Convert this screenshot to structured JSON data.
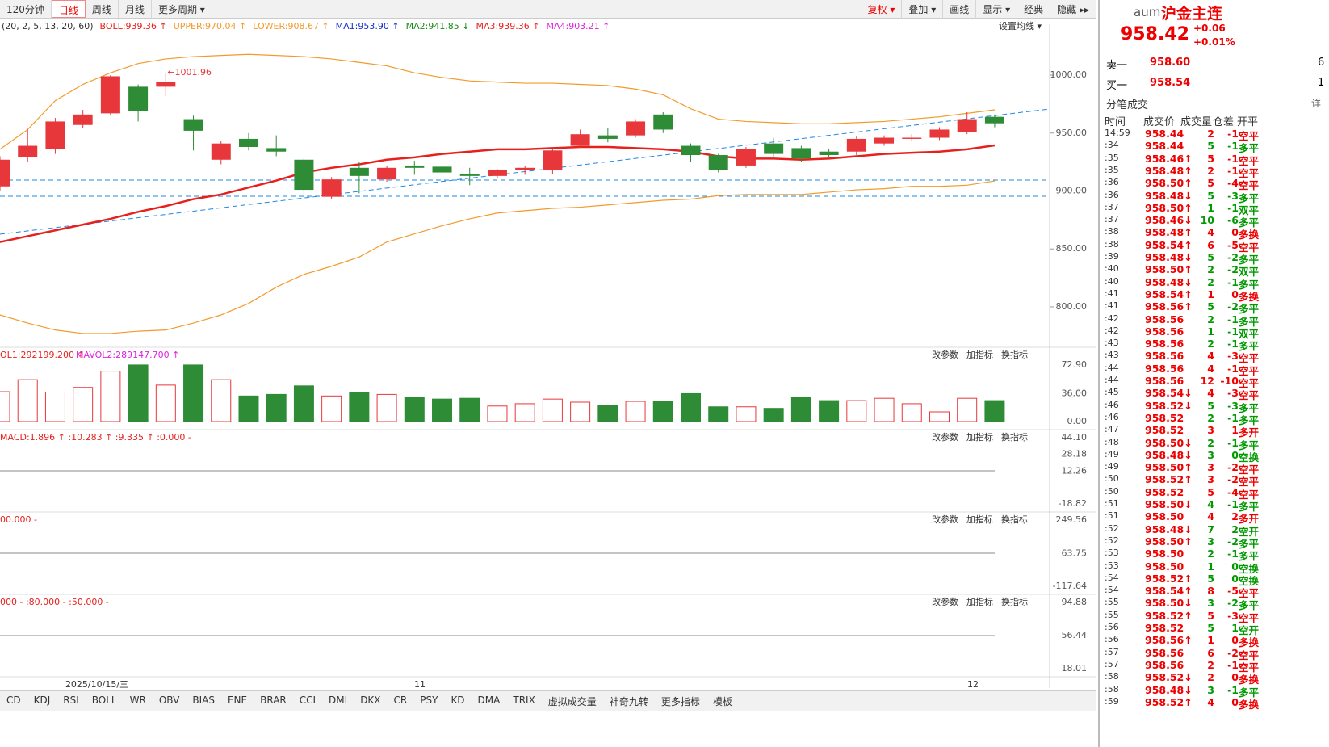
{
  "toolbar": {
    "periods": [
      "120分钟",
      "日线",
      "周线",
      "月线",
      "更多周期 ▾"
    ],
    "tools": [
      "复权 ▾",
      "叠加 ▾",
      "画线",
      "显示 ▾",
      "经典",
      "隐藏 ▸▸"
    ]
  },
  "main_legend": {
    "params": "(20, 2, 5, 13, 20, 60)",
    "items": [
      "BOLL:939.36 ↑",
      "UPPER:970.04 ↑",
      "LOWER:908.67 ↑",
      "MA1:953.90 ↑",
      "MA2:941.85 ↓",
      "MA3:939.36 ↑",
      "MA4:903.21 ↑"
    ],
    "setting": "设置均线 ▾"
  },
  "pane_buttons": [
    "改参数",
    "加指标",
    "换指标"
  ],
  "pane_headers": [
    "OL1:292199.200 ↑",
    "MAVOL2:289147.700 ↑",
    "MACD:1.896 ↑ :10.283 ↑ :9.335 ↑ :0.000 -",
    "00.000 -",
    "000 - :80.000 - :50.000 -"
  ],
  "chart_data": {
    "type": "candlestick",
    "annotation": "←1001.96",
    "ylim": [
      770,
      1030
    ],
    "yticks": [
      {
        "value": 1000,
        "label": "1000.00"
      },
      {
        "value": 950,
        "label": "950.00"
      },
      {
        "value": 900,
        "label": "900.00"
      },
      {
        "value": 850,
        "label": "850.00"
      },
      {
        "value": 800,
        "label": "800.00"
      }
    ],
    "x_labels": [
      "2025/10/15/三",
      "11",
      "12"
    ],
    "open": [
      904,
      929,
      936,
      957,
      967,
      990,
      990,
      962,
      927,
      945,
      937,
      927,
      895,
      920,
      910,
      922,
      921,
      915,
      913,
      918,
      918,
      939,
      948,
      948,
      966,
      939,
      931,
      922,
      941,
      937,
      934,
      934,
      941,
      945,
      946,
      951,
      964
    ],
    "high": [
      930,
      953,
      963,
      970,
      1000,
      992,
      1001.96,
      965,
      943,
      950,
      948,
      928,
      912,
      925,
      922,
      926,
      924,
      920,
      919,
      922,
      937,
      953,
      954,
      962,
      968,
      941,
      932,
      938,
      946,
      939,
      936,
      947,
      948,
      949,
      955,
      968,
      966
    ],
    "low": [
      900,
      925,
      932,
      954,
      965,
      960,
      982,
      935,
      923,
      935,
      930,
      898,
      893,
      898,
      908,
      914,
      912,
      905,
      911,
      914,
      915,
      937,
      942,
      946,
      950,
      925,
      916,
      920,
      929,
      925,
      929,
      931,
      939,
      943,
      944,
      949,
      955
    ],
    "close": [
      927,
      939,
      960,
      966,
      999,
      969,
      994,
      952,
      941,
      938,
      934,
      901,
      910,
      913,
      920,
      920,
      916,
      913,
      918,
      920,
      935,
      949,
      945,
      960,
      953,
      931,
      918,
      936,
      932,
      928,
      931,
      945,
      946,
      946,
      953,
      962,
      958.42
    ],
    "up_color": "#e8373a",
    "down_color": "#2f8c36",
    "series": [
      {
        "name": "UPPER",
        "color": "#f39a2b",
        "values": [
          936,
          953,
          978,
          992,
          1002,
          1010,
          1014,
          1016,
          1017,
          1018,
          1017,
          1016,
          1014,
          1011,
          1008,
          1002,
          998,
          995,
          994,
          993,
          993,
          992,
          991,
          988,
          983,
          971,
          962,
          960,
          959,
          958,
          958,
          959,
          960,
          962,
          964,
          967,
          970.04
        ]
      },
      {
        "name": "LOWER",
        "color": "#f39a2b",
        "values": [
          793,
          786,
          780,
          777,
          777,
          779,
          780,
          786,
          793,
          803,
          817,
          828,
          835,
          843,
          856,
          863,
          870,
          876,
          881,
          883,
          885,
          886,
          888,
          890,
          892,
          893,
          896,
          897,
          897,
          897,
          899,
          901,
          902,
          904,
          904,
          905,
          908.67
        ]
      },
      {
        "name": "MA3",
        "color": "#e8201c",
        "values": [
          856,
          861,
          866,
          871,
          876,
          882,
          887,
          893,
          897,
          903,
          909,
          916,
          920,
          923,
          927,
          929,
          932,
          934,
          936,
          936,
          937,
          938,
          938,
          937,
          936,
          934,
          930,
          928,
          928,
          927,
          928,
          930,
          932,
          933,
          934,
          936,
          939.36
        ]
      }
    ],
    "volume": {
      "values": [
        38.5,
        54,
        38,
        44,
        65,
        73,
        47,
        73,
        54,
        33,
        35,
        46,
        33,
        37,
        35,
        31,
        29,
        30,
        20,
        23,
        29,
        25,
        21,
        26,
        26,
        36,
        19,
        19,
        17,
        31,
        27,
        27,
        30,
        23,
        12.5,
        30,
        27
      ],
      "ylim": [
        0,
        72.9
      ],
      "yticks": [
        {
          "value": 72.9,
          "label": "72.90"
        },
        {
          "value": 36,
          "label": "36.00"
        },
        {
          "value": 0,
          "label": "0.00"
        }
      ]
    },
    "pane_ticks": [
      {
        "ylim": [
          -18.82,
          44.1
        ],
        "yticks": [
          {
            "value": 44.1,
            "label": "44.10"
          },
          {
            "value": 28.18,
            "label": "28.18"
          },
          {
            "value": 12.26,
            "label": "12.26"
          },
          {
            "value": -18.82,
            "label": "-18.82"
          }
        ]
      },
      {
        "ylim": [
          -117.64,
          249.56
        ],
        "yticks": [
          {
            "value": 249.56,
            "label": "249.56"
          },
          {
            "value": 63.75,
            "label": "63.75"
          },
          {
            "value": -117.64,
            "label": "-117.64"
          }
        ]
      },
      {
        "ylim": [
          18.01,
          94.88
        ],
        "yticks": [
          {
            "value": 94.88,
            "label": "94.88"
          },
          {
            "value": 56.44,
            "label": "56.44"
          },
          {
            "value": 18.01,
            "label": "18.01"
          }
        ]
      }
    ]
  },
  "tabs": [
    "CD",
    "KDJ",
    "RSI",
    "BOLL",
    "WR",
    "OBV",
    "BIAS",
    "ENE",
    "BRAR",
    "CCI",
    "DMI",
    "DKX",
    "CR",
    "PSY",
    "KD",
    "DMA",
    "TRIX",
    "虚拟成交量",
    "神奇九转",
    "更多指标",
    "模板"
  ],
  "quote": {
    "code": "aum",
    "name": "沪金主连",
    "price": "958.42",
    "change": "+0.06",
    "pct": "+0.01%",
    "ask_label": "卖一",
    "ask": "958.60",
    "ask_vol": 6,
    "bid_label": "买一",
    "bid": "958.54",
    "bid_vol": 1
  },
  "trades": {
    "title": "分笔成交",
    "detail": "详",
    "headers": [
      "时间",
      "成交价",
      "成交量",
      "仓差",
      "开平"
    ],
    "rows": [
      [
        "14:59",
        "958.44",
        2,
        -1,
        "空平"
      ],
      [
        ":34",
        "958.44",
        5,
        -1,
        "多平"
      ],
      [
        ":35",
        "958.46↑",
        5,
        -1,
        "空平"
      ],
      [
        ":35",
        "958.48↑",
        2,
        -1,
        "空平"
      ],
      [
        ":36",
        "958.50↑",
        5,
        -4,
        "空平"
      ],
      [
        ":36",
        "958.48↓",
        5,
        -3,
        "多平"
      ],
      [
        ":37",
        "958.50↑",
        1,
        -1,
        "双平"
      ],
      [
        ":37",
        "958.46↓",
        10,
        -6,
        "多平"
      ],
      [
        ":38",
        "958.48↑",
        4,
        0,
        "多换"
      ],
      [
        ":38",
        "958.54↑",
        6,
        -5,
        "空平"
      ],
      [
        ":39",
        "958.48↓",
        5,
        -2,
        "多平"
      ],
      [
        ":40",
        "958.50↑",
        2,
        -2,
        "双平"
      ],
      [
        ":40",
        "958.48↓",
        2,
        -1,
        "多平"
      ],
      [
        ":41",
        "958.54↑",
        1,
        0,
        "多换"
      ],
      [
        ":41",
        "958.56↑",
        5,
        -2,
        "多平"
      ],
      [
        ":42",
        "958.56",
        2,
        -1,
        "多平"
      ],
      [
        ":42",
        "958.56",
        1,
        -1,
        "双平"
      ],
      [
        ":43",
        "958.56",
        2,
        -1,
        "多平"
      ],
      [
        ":43",
        "958.56",
        4,
        -3,
        "空平"
      ],
      [
        ":44",
        "958.56",
        4,
        -1,
        "空平"
      ],
      [
        ":44",
        "958.56",
        12,
        -10,
        "空平"
      ],
      [
        ":45",
        "958.54↓",
        4,
        -3,
        "空平"
      ],
      [
        ":46",
        "958.52↓",
        5,
        -3,
        "多平"
      ],
      [
        ":46",
        "958.52",
        2,
        -1,
        "多平"
      ],
      [
        ":47",
        "958.52",
        3,
        1,
        "多开"
      ],
      [
        ":48",
        "958.50↓",
        2,
        -1,
        "多平"
      ],
      [
        ":49",
        "958.48↓",
        3,
        0,
        "空换"
      ],
      [
        ":49",
        "958.50↑",
        3,
        -2,
        "空平"
      ],
      [
        ":50",
        "958.52↑",
        3,
        -2,
        "空平"
      ],
      [
        ":50",
        "958.52",
        5,
        -4,
        "空平"
      ],
      [
        ":51",
        "958.50↓",
        4,
        -1,
        "多平"
      ],
      [
        ":51",
        "958.50",
        4,
        2,
        "多开"
      ],
      [
        ":52",
        "958.48↓",
        7,
        2,
        "空开"
      ],
      [
        ":52",
        "958.50↑",
        3,
        -2,
        "多平"
      ],
      [
        ":53",
        "958.50",
        2,
        -1,
        "多平"
      ],
      [
        ":53",
        "958.50",
        1,
        0,
        "空换"
      ],
      [
        ":54",
        "958.52↑",
        5,
        0,
        "空换"
      ],
      [
        ":54",
        "958.54↑",
        8,
        -5,
        "空平"
      ],
      [
        ":55",
        "958.50↓",
        3,
        -2,
        "多平"
      ],
      [
        ":55",
        "958.52↑",
        5,
        -3,
        "空平"
      ],
      [
        ":56",
        "958.52",
        5,
        1,
        "空开"
      ],
      [
        ":56",
        "958.56↑",
        1,
        0,
        "多换"
      ],
      [
        ":57",
        "958.56",
        6,
        -2,
        "空平"
      ],
      [
        ":57",
        "958.56",
        2,
        -1,
        "空平"
      ],
      [
        ":58",
        "958.52↓",
        2,
        0,
        "多换"
      ],
      [
        ":58",
        "958.48↓",
        3,
        -1,
        "多平"
      ],
      [
        ":59",
        "958.52↑",
        4,
        0,
        "多换"
      ]
    ]
  }
}
